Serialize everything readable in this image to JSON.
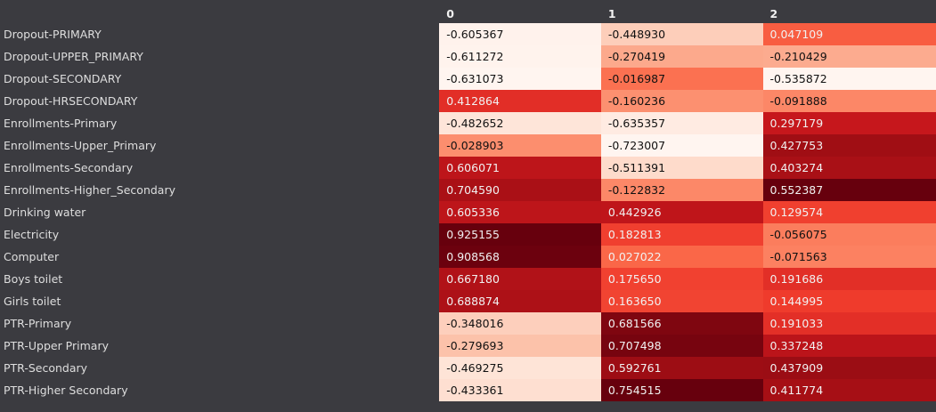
{
  "table": {
    "columns": [
      "0",
      "1",
      "2"
    ],
    "rows": [
      {
        "label": "Dropout-PRIMARY",
        "values": [
          "-0.605367",
          "-0.448930",
          "0.047109"
        ],
        "num": [
          -0.605367,
          -0.44893,
          0.047109
        ]
      },
      {
        "label": "Dropout-UPPER_PRIMARY",
        "values": [
          "-0.611272",
          "-0.270419",
          "-0.210429"
        ],
        "num": [
          -0.611272,
          -0.270419,
          -0.210429
        ]
      },
      {
        "label": "Dropout-SECONDARY",
        "values": [
          "-0.631073",
          "-0.016987",
          "-0.535872"
        ],
        "num": [
          -0.631073,
          -0.016987,
          -0.535872
        ]
      },
      {
        "label": "Dropout-HRSECONDARY",
        "values": [
          "0.412864",
          "-0.160236",
          "-0.091888"
        ],
        "num": [
          0.412864,
          -0.160236,
          -0.091888
        ]
      },
      {
        "label": "Enrollments-Primary",
        "values": [
          "-0.482652",
          "-0.635357",
          "0.297179"
        ],
        "num": [
          -0.482652,
          -0.635357,
          0.297179
        ]
      },
      {
        "label": "Enrollments-Upper_Primary",
        "values": [
          "-0.028903",
          "-0.723007",
          "0.427753"
        ],
        "num": [
          -0.028903,
          -0.723007,
          0.427753
        ]
      },
      {
        "label": "Enrollments-Secondary",
        "values": [
          "0.606071",
          "-0.511391",
          "0.403274"
        ],
        "num": [
          0.606071,
          -0.511391,
          0.403274
        ]
      },
      {
        "label": "Enrollments-Higher_Secondary",
        "values": [
          "0.704590",
          "-0.122832",
          "0.552387"
        ],
        "num": [
          0.70459,
          -0.122832,
          0.552387
        ]
      },
      {
        "label": "Drinking water",
        "values": [
          "0.605336",
          "0.442926",
          "0.129574"
        ],
        "num": [
          0.605336,
          0.442926,
          0.129574
        ]
      },
      {
        "label": "Electricity",
        "values": [
          "0.925155",
          "0.182813",
          "-0.056075"
        ],
        "num": [
          0.925155,
          0.182813,
          -0.056075
        ]
      },
      {
        "label": "Computer",
        "values": [
          "0.908568",
          "0.027022",
          "-0.071563"
        ],
        "num": [
          0.908568,
          0.027022,
          -0.071563
        ]
      },
      {
        "label": "Boys toilet",
        "values": [
          "0.667180",
          "0.175650",
          "0.191686"
        ],
        "num": [
          0.66718,
          0.17565,
          0.191686
        ]
      },
      {
        "label": "Girls toilet",
        "values": [
          "0.688874",
          "0.163650",
          "0.144995"
        ],
        "num": [
          0.688874,
          0.16365,
          0.144995
        ]
      },
      {
        "label": "PTR-Primary",
        "values": [
          "-0.348016",
          "0.681566",
          "0.191033"
        ],
        "num": [
          -0.348016,
          0.681566,
          0.191033
        ]
      },
      {
        "label": "PTR-Upper Primary",
        "values": [
          "-0.279693",
          "0.707498",
          "0.337248"
        ],
        "num": [
          -0.279693,
          0.707498,
          0.337248
        ]
      },
      {
        "label": "PTR-Secondary",
        "values": [
          "-0.469275",
          "0.592761",
          "0.437909"
        ],
        "num": [
          -0.469275,
          0.592761,
          0.437909
        ]
      },
      {
        "label": "PTR-Higher Secondary",
        "values": [
          "-0.433361",
          "0.754515",
          "0.411774"
        ],
        "num": [
          -0.433361,
          0.754515,
          0.411774
        ]
      }
    ]
  },
  "colormap": {
    "name": "Reds",
    "stops": [
      "#fff5f0",
      "#fee0d2",
      "#fcbba1",
      "#fc9272",
      "#fb6a4a",
      "#ef3b2c",
      "#cb181d",
      "#a50f15",
      "#67000d"
    ]
  }
}
